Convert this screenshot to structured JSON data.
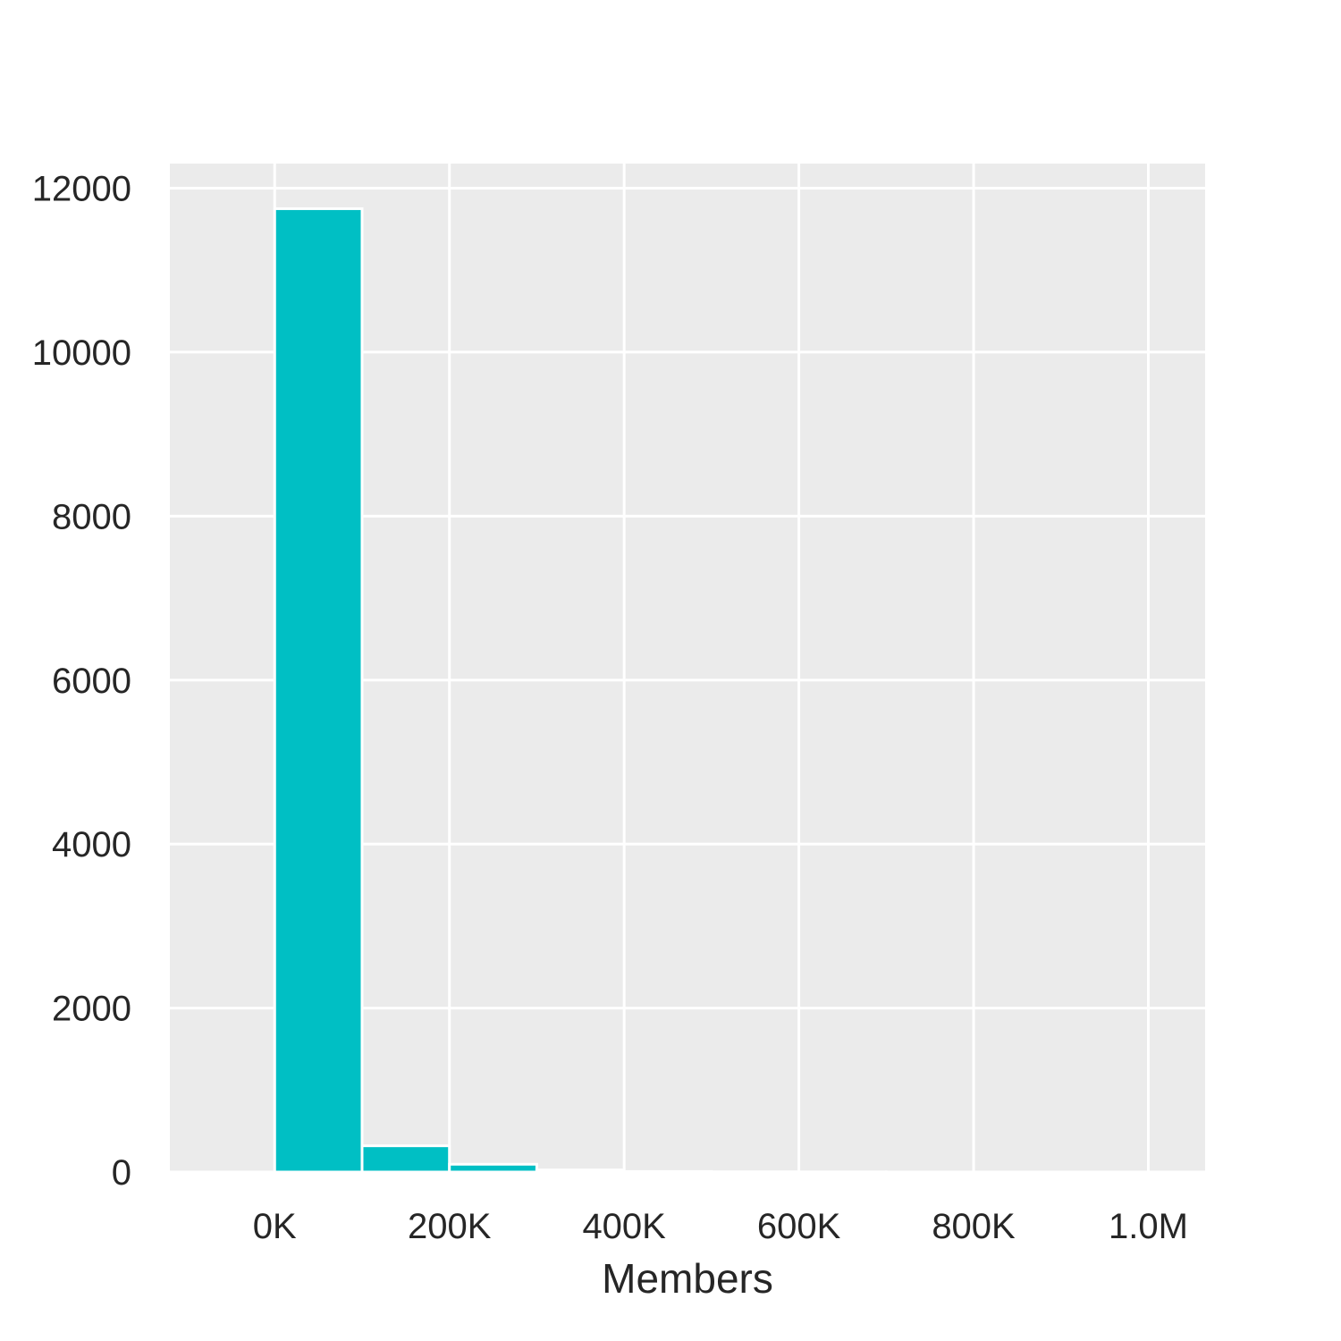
{
  "chart_data": {
    "type": "histogram",
    "xlabel": "Members",
    "ylabel": "",
    "xlim": [
      -120000,
      1065000
    ],
    "ylim": [
      0,
      12300
    ],
    "x_ticks": [
      {
        "value": 0,
        "label": "0K"
      },
      {
        "value": 200000,
        "label": "200K"
      },
      {
        "value": 400000,
        "label": "400K"
      },
      {
        "value": 600000,
        "label": "600K"
      },
      {
        "value": 800000,
        "label": "800K"
      },
      {
        "value": 1000000,
        "label": "1.0M"
      }
    ],
    "y_ticks": [
      {
        "value": 0,
        "label": "0"
      },
      {
        "value": 2000,
        "label": "2000"
      },
      {
        "value": 4000,
        "label": "4000"
      },
      {
        "value": 6000,
        "label": "6000"
      },
      {
        "value": 8000,
        "label": "8000"
      },
      {
        "value": 10000,
        "label": "10000"
      },
      {
        "value": 12000,
        "label": "12000"
      }
    ],
    "bins": [
      {
        "start": 0,
        "end": 100000,
        "count": 11750
      },
      {
        "start": 100000,
        "end": 200000,
        "count": 320
      },
      {
        "start": 200000,
        "end": 300000,
        "count": 95
      },
      {
        "start": 300000,
        "end": 400000,
        "count": 25
      },
      {
        "start": 400000,
        "end": 500000,
        "count": 6
      },
      {
        "start": 500000,
        "end": 600000,
        "count": 3
      },
      {
        "start": 600000,
        "end": 700000,
        "count": 2
      },
      {
        "start": 700000,
        "end": 800000,
        "count": 1
      },
      {
        "start": 800000,
        "end": 900000,
        "count": 1
      },
      {
        "start": 900000,
        "end": 1000000,
        "count": 0
      },
      {
        "start": 1000000,
        "end": 1100000,
        "count": 1
      }
    ],
    "grid": true,
    "colors": {
      "bar": "#00BFC4",
      "panel_background": "#EBEBEB",
      "grid": "#FFFFFF",
      "text": "#262626"
    }
  }
}
